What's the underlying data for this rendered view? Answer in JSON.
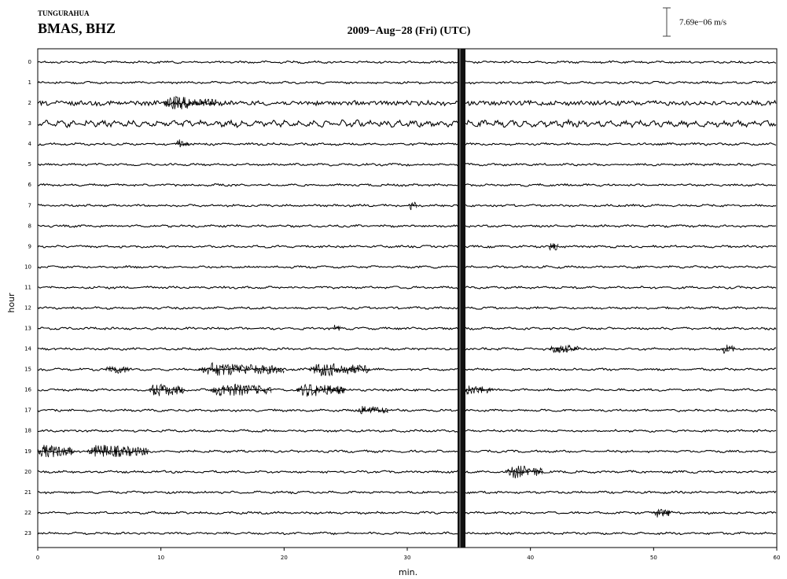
{
  "chart_data": {
    "type": "helicorder",
    "network": "TUNGURAHUA",
    "title": "BMAS, BHZ",
    "subtitle": "2009−Aug−28 (Fri)  (UTC)",
    "scale_label": "7.69e−06 m/s",
    "xlabel": "min.",
    "ylabel": "hour",
    "categories": [
      "0",
      "1",
      "2",
      "3",
      "4",
      "5",
      "6",
      "7",
      "8",
      "9",
      "10",
      "11",
      "12",
      "13",
      "14",
      "15",
      "16",
      "17",
      "18",
      "19",
      "20",
      "21",
      "22",
      "23"
    ],
    "xlim": [
      0,
      60
    ],
    "xticks": [
      0,
      10,
      20,
      30,
      40,
      50,
      60
    ],
    "color": "#000000",
    "events": [
      {
        "hour": 2,
        "start": 10.2,
        "end": 14.5
      },
      {
        "hour": 4,
        "start": 11.2,
        "end": 12.3
      },
      {
        "hour": 7,
        "start": 30.2,
        "end": 30.8
      },
      {
        "hour": 9,
        "start": 41.5,
        "end": 42.3
      },
      {
        "hour": 13,
        "start": 24,
        "end": 24.6
      },
      {
        "hour": 14,
        "start": 41.5,
        "end": 44
      },
      {
        "hour": 14,
        "start": 55.5,
        "end": 56.6
      },
      {
        "hour": 15,
        "start": 5.5,
        "end": 7.5
      },
      {
        "hour": 15,
        "start": 13,
        "end": 20
      },
      {
        "hour": 15,
        "start": 22,
        "end": 27
      },
      {
        "hour": 16,
        "start": 9,
        "end": 12
      },
      {
        "hour": 16,
        "start": 14,
        "end": 19
      },
      {
        "hour": 16,
        "start": 21,
        "end": 25
      },
      {
        "hour": 16,
        "start": 34.5,
        "end": 37
      },
      {
        "hour": 17,
        "start": 26,
        "end": 28.5
      },
      {
        "hour": 19,
        "start": 0,
        "end": 3
      },
      {
        "hour": 19,
        "start": 4,
        "end": 9
      },
      {
        "hour": 20,
        "start": 38,
        "end": 41
      },
      {
        "hour": 22,
        "start": 50,
        "end": 51.5
      }
    ]
  }
}
